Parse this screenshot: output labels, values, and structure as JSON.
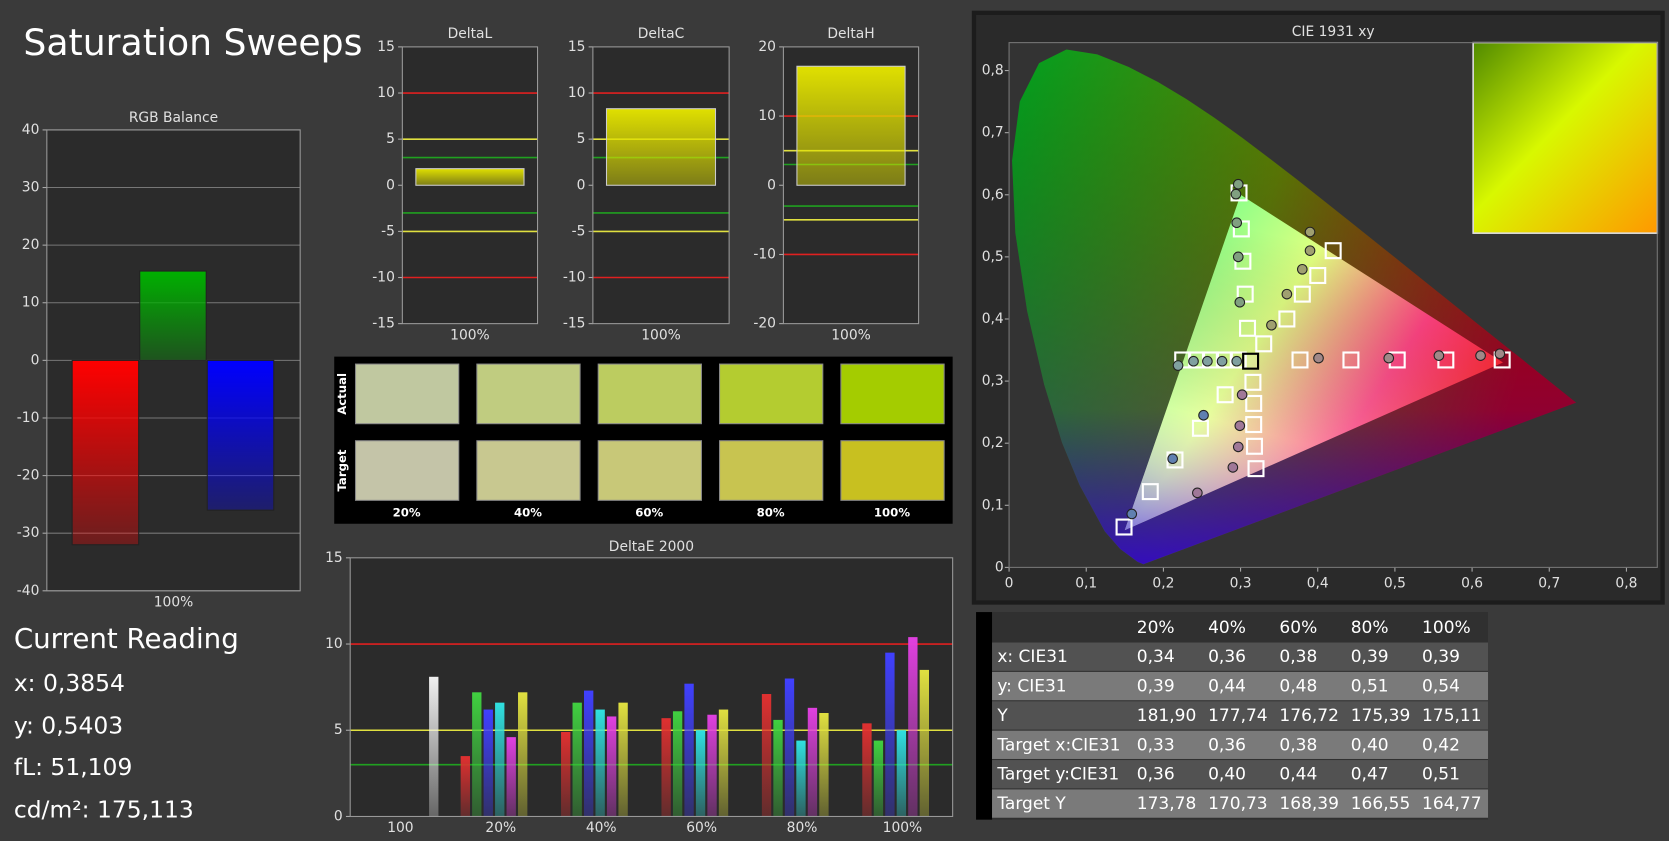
{
  "title": "Saturation Sweeps",
  "current_reading": {
    "heading": "Current Reading",
    "lines": [
      "x: 0,3854",
      "y: 0,5403",
      "fL: 51,109",
      "cd/m²: 175,113"
    ]
  },
  "chart_data": [
    {
      "type": "bar",
      "title": "RGB Balance",
      "categories": [
        "100%"
      ],
      "series": [
        {
          "color": "#ff0000",
          "values": [
            -32
          ]
        },
        {
          "color": "#00b000",
          "values": [
            15.5
          ]
        },
        {
          "color": "#0000ff",
          "values": [
            -26
          ]
        }
      ],
      "ylim": [
        -40,
        40
      ],
      "yticks": [
        -40,
        -30,
        -20,
        -10,
        0,
        10,
        20,
        30,
        40
      ],
      "grid": true
    },
    {
      "type": "bar",
      "title": "DeltaL",
      "categories": [
        "100%"
      ],
      "values": [
        1.8
      ],
      "color": "#e0e000",
      "ylim": [
        -15,
        15
      ],
      "yticks": [
        -15,
        -10,
        -5,
        0,
        5,
        10,
        15
      ],
      "grid": false,
      "reference_lines": [
        {
          "value": 10,
          "color": "#e02020"
        },
        {
          "value": 5,
          "color": "#e0e040"
        },
        {
          "value": 3,
          "color": "#20a020"
        },
        {
          "value": -3,
          "color": "#20a020"
        },
        {
          "value": -5,
          "color": "#e0e040"
        },
        {
          "value": -10,
          "color": "#e02020"
        }
      ]
    },
    {
      "type": "bar",
      "title": "DeltaC",
      "categories": [
        "100%"
      ],
      "values": [
        8.3
      ],
      "color": "#e0e000",
      "ylim": [
        -15,
        15
      ],
      "yticks": [
        -15,
        -10,
        -5,
        0,
        5,
        10,
        15
      ],
      "grid": false,
      "reference_lines": [
        {
          "value": 10,
          "color": "#e02020"
        },
        {
          "value": 5,
          "color": "#e0e040"
        },
        {
          "value": 3,
          "color": "#20a020"
        },
        {
          "value": -3,
          "color": "#20a020"
        },
        {
          "value": -5,
          "color": "#e0e040"
        },
        {
          "value": -10,
          "color": "#e02020"
        }
      ]
    },
    {
      "type": "bar",
      "title": "DeltaH",
      "categories": [
        "100%"
      ],
      "values": [
        17.2
      ],
      "color": "#e0e000",
      "ylim": [
        -20,
        20
      ],
      "yticks": [
        -20,
        -10,
        0,
        10,
        20
      ],
      "grid": false,
      "reference_lines": [
        {
          "value": 10,
          "color": "#e02020"
        },
        {
          "value": 5,
          "color": "#e0e040"
        },
        {
          "value": 3,
          "color": "#20a020"
        },
        {
          "value": -3,
          "color": "#20a020"
        },
        {
          "value": -5,
          "color": "#e0e040"
        },
        {
          "value": -10,
          "color": "#e02020"
        }
      ]
    },
    {
      "type": "bar",
      "title": "DeltaE 2000",
      "categories": [
        "100",
        "20%",
        "40%",
        "60%",
        "80%",
        "100%"
      ],
      "series": [
        {
          "color": "#e03030",
          "values": [
            null,
            3.5,
            4.9,
            5.7,
            7.1,
            5.4
          ]
        },
        {
          "color": "#40d040",
          "values": [
            null,
            7.2,
            6.6,
            6.1,
            5.6,
            4.4
          ]
        },
        {
          "color": "#4040ff",
          "values": [
            null,
            6.2,
            7.3,
            7.7,
            8.0,
            9.5
          ]
        },
        {
          "color": "#30e0e0",
          "values": [
            null,
            6.6,
            6.2,
            5.0,
            4.4,
            5.0
          ]
        },
        {
          "color": "#e040e0",
          "values": [
            null,
            4.6,
            5.8,
            5.9,
            6.3,
            10.4
          ]
        },
        {
          "color": "#e0e040",
          "values": [
            null,
            7.2,
            6.6,
            6.2,
            6.0,
            8.5
          ]
        },
        {
          "color": "#f0f0f0",
          "values": [
            8.1,
            null,
            null,
            null,
            null,
            null
          ]
        }
      ],
      "ylim": [
        0,
        15
      ],
      "yticks": [
        0,
        5,
        10,
        15
      ],
      "grid": false,
      "reference_lines": [
        {
          "value": 10,
          "color": "#e02020"
        },
        {
          "value": 5,
          "color": "#e0e040"
        },
        {
          "value": 3,
          "color": "#20a020"
        }
      ]
    },
    {
      "type": "scatter",
      "title": "CIE 1931 xy",
      "xlim": [
        0,
        0.84
      ],
      "ylim": [
        0,
        0.845
      ],
      "xticks": [
        0,
        {
          "value": 0.1,
          "label": "0,1"
        },
        {
          "value": 0.2,
          "label": "0,2"
        },
        {
          "value": 0.3,
          "label": "0,3"
        },
        {
          "value": 0.4,
          "label": "0,4"
        },
        {
          "value": 0.5,
          "label": "0,5"
        },
        {
          "value": 0.6,
          "label": "0,6"
        },
        {
          "value": 0.7,
          "label": "0,7"
        },
        {
          "value": 0.8,
          "label": "0,8"
        }
      ],
      "yticks": [
        0,
        {
          "value": 0.1,
          "label": "0,1"
        },
        {
          "value": 0.2,
          "label": "0,2"
        },
        {
          "value": 0.3,
          "label": "0,3"
        },
        {
          "value": 0.4,
          "label": "0,4"
        },
        {
          "value": 0.5,
          "label": "0,5"
        },
        {
          "value": 0.6,
          "label": "0,6"
        },
        {
          "value": 0.7,
          "label": "0,7"
        },
        {
          "value": 0.8,
          "label": "0,8"
        }
      ],
      "series": [
        {
          "marker": "square",
          "color": "#ffffff",
          "x": [
            0.149,
            0.183,
            0.215,
            0.248,
            0.28
          ],
          "y": [
            0.065,
            0.122,
            0.173,
            0.224,
            0.278
          ]
        },
        {
          "marker": "square",
          "color": "#ffffff",
          "x": [
            0.298,
            0.301,
            0.303,
            0.306,
            0.309
          ],
          "y": [
            0.603,
            0.545,
            0.493,
            0.44,
            0.385
          ]
        },
        {
          "marker": "square",
          "color": "#ffffff",
          "x": [
            0.377,
            0.443,
            0.503,
            0.566,
            0.639
          ],
          "y": [
            0.334,
            0.334,
            0.334,
            0.334,
            0.334
          ]
        },
        {
          "marker": "square",
          "color": "#ffffff",
          "x": [
            0.225,
            0.243,
            0.261,
            0.279,
            0.297
          ],
          "y": [
            0.334,
            0.334,
            0.334,
            0.334,
            0.334
          ]
        },
        {
          "marker": "square",
          "color": "#ffffff",
          "x": [
            0.316,
            0.317,
            0.317,
            0.318,
            0.32
          ],
          "y": [
            0.298,
            0.264,
            0.23,
            0.195,
            0.159
          ]
        },
        {
          "marker": "square",
          "color": "#ffffff",
          "x": [
            0.33,
            0.36,
            0.38,
            0.4,
            0.42
          ],
          "y": [
            0.36,
            0.4,
            0.44,
            0.47,
            0.51
          ]
        },
        {
          "marker": "square",
          "color": "#000000",
          "x": [
            0.313
          ],
          "y": [
            0.332
          ]
        },
        {
          "marker": "circle",
          "color": "#6080b0",
          "x": [
            0.159,
            0.212,
            0.252
          ],
          "y": [
            0.086,
            0.175,
            0.245
          ]
        },
        {
          "marker": "circle",
          "color": "#80a080",
          "x": [
            0.299,
            0.297,
            0.295,
            0.294,
            0.297
          ],
          "y": [
            0.427,
            0.5,
            0.555,
            0.601,
            0.617
          ]
        },
        {
          "marker": "circle",
          "color": "#a08888",
          "x": [
            0.401,
            0.492,
            0.557,
            0.611,
            0.636
          ],
          "y": [
            0.337,
            0.337,
            0.341,
            0.341,
            0.344
          ]
        },
        {
          "marker": "circle",
          "color": "#80a0a0",
          "x": [
            0.295,
            0.276,
            0.257,
            0.239,
            0.219
          ],
          "y": [
            0.332,
            0.332,
            0.332,
            0.332,
            0.325
          ]
        },
        {
          "marker": "circle",
          "color": "#a07898",
          "x": [
            0.302,
            0.299,
            0.297,
            0.29,
            0.244
          ],
          "y": [
            0.278,
            0.228,
            0.194,
            0.161,
            0.12
          ]
        },
        {
          "marker": "circle",
          "color": "#a0a070",
          "x": [
            0.34,
            0.36,
            0.38,
            0.39,
            0.39
          ],
          "y": [
            0.39,
            0.44,
            0.48,
            0.51,
            0.54
          ]
        }
      ]
    }
  ],
  "swatches": {
    "row_labels": [
      "Actual",
      "Target"
    ],
    "columns": [
      "20%",
      "40%",
      "60%",
      "80%",
      "100%"
    ],
    "actual": [
      "#c0c8a0",
      "#c0cc80",
      "#bccc60",
      "#b4cc30",
      "#a4cc00"
    ],
    "target": [
      "#c4c4a8",
      "#c8c890",
      "#c8c878",
      "#c8c450",
      "#c8c020"
    ]
  },
  "table": {
    "columns": [
      "20%",
      "40%",
      "60%",
      "80%",
      "100%"
    ],
    "rows": [
      [
        "x: CIE31",
        "0,34",
        "0,36",
        "0,38",
        "0,39",
        "0,39"
      ],
      [
        "y: CIE31",
        "0,39",
        "0,44",
        "0,48",
        "0,51",
        "0,54"
      ],
      [
        "Y",
        "181,90",
        "177,74",
        "176,72",
        "175,39",
        "175,11"
      ],
      [
        "Target x:CIE31",
        "0,33",
        "0,36",
        "0,38",
        "0,40",
        "0,42"
      ],
      [
        "Target y:CIE31",
        "0,36",
        "0,40",
        "0,44",
        "0,47",
        "0,51"
      ],
      [
        "Target Y",
        "173,78",
        "170,73",
        "168,39",
        "166,55",
        "164,77"
      ]
    ]
  }
}
